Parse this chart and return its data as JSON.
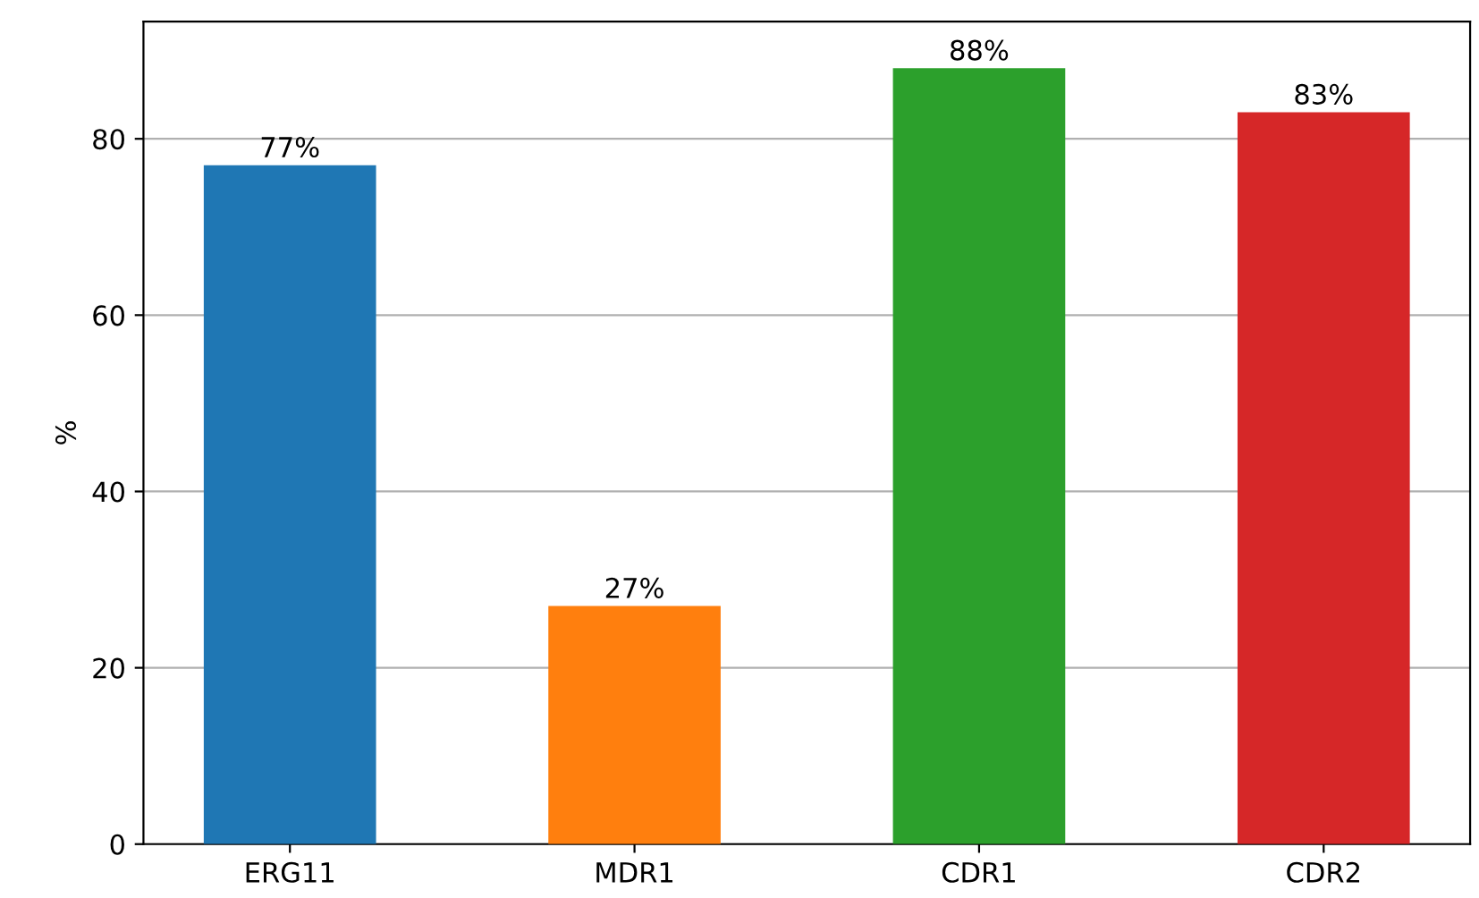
{
  "chart_data": {
    "type": "bar",
    "ylabel": "%",
    "categories": [
      "ERG11",
      "MDR1",
      "CDR1",
      "CDR2"
    ],
    "values": [
      77,
      27,
      88,
      83
    ],
    "value_labels": [
      "77%",
      "27%",
      "88%",
      "83%"
    ],
    "colors": [
      "#1f77b4",
      "#ff7f0e",
      "#2ca02c",
      "#d62728"
    ],
    "ylim": [
      0,
      93.3
    ],
    "yticks": [
      0,
      20,
      40,
      60,
      80
    ],
    "grid": "y"
  }
}
